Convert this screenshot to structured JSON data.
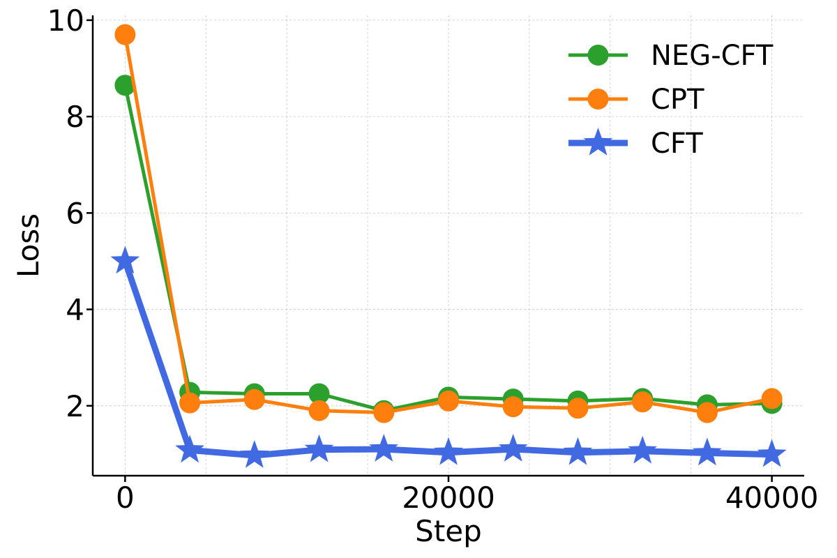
{
  "chart_data": {
    "type": "line",
    "xlabel": "Step",
    "ylabel": "Loss",
    "xlim": [
      -2000,
      42000
    ],
    "ylim": [
      0.55,
      10.1
    ],
    "xticks": [
      0,
      20000,
      40000
    ],
    "yticks": [
      2,
      4,
      6,
      8,
      10
    ],
    "grid": true,
    "legend_position": "top-right",
    "x": [
      0,
      4000,
      8000,
      12000,
      16000,
      20000,
      24000,
      28000,
      32000,
      36000,
      40000
    ],
    "series": [
      {
        "name": "NEG-CFT",
        "color": "#2ca02c",
        "marker": "circle",
        "values": [
          8.65,
          2.28,
          2.25,
          2.25,
          1.9,
          2.18,
          2.14,
          2.1,
          2.15,
          2.02,
          2.05
        ]
      },
      {
        "name": "CPT",
        "color": "#ff7f0e",
        "marker": "circle",
        "values": [
          9.7,
          2.06,
          2.13,
          1.9,
          1.86,
          2.1,
          1.98,
          1.95,
          2.08,
          1.86,
          2.15
        ]
      },
      {
        "name": "CFT",
        "color": "#4169e1",
        "marker": "star",
        "values": [
          5.0,
          1.08,
          0.97,
          1.09,
          1.1,
          1.03,
          1.1,
          1.03,
          1.06,
          1.02,
          0.99
        ]
      }
    ]
  }
}
